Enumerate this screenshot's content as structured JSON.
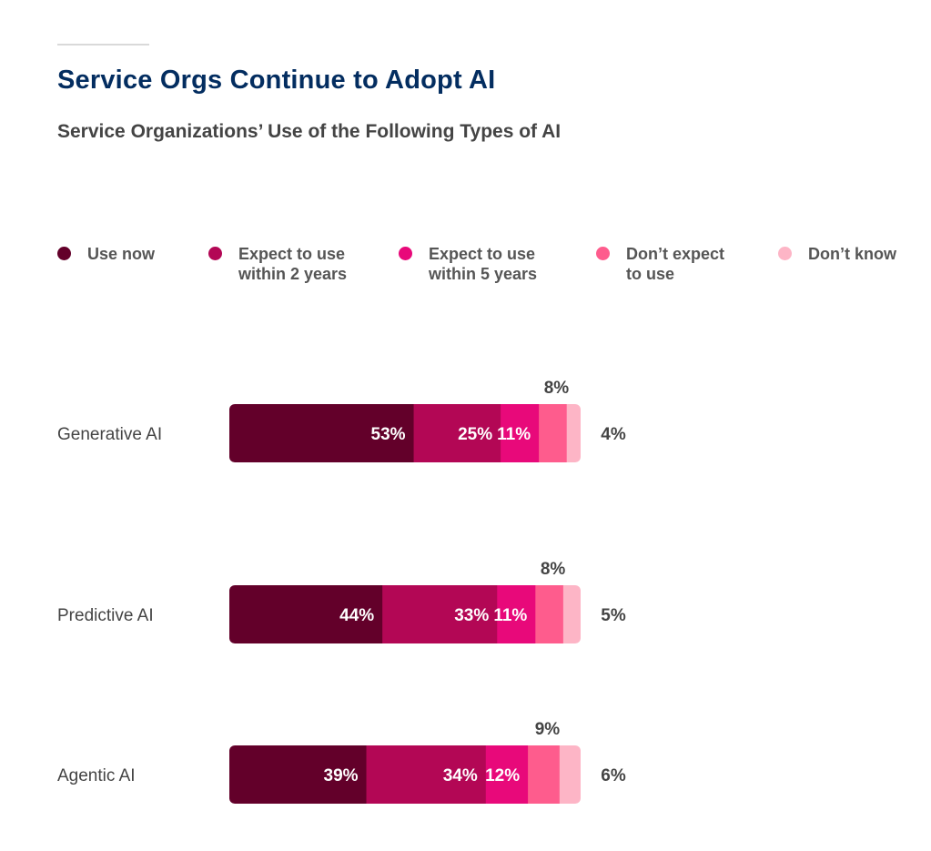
{
  "header": {
    "title": "Service Orgs Continue to Adopt AI",
    "subtitle": "Service Organizations’ Use of the Following Types of AI"
  },
  "colors": {
    "title": "#032d60",
    "use_now": "#63002a",
    "within_2_years": "#b30755",
    "within_5_years": "#e8097a",
    "dont_expect": "#fe5c8d",
    "dont_know": "#fdb5c6"
  },
  "chart_data": {
    "type": "bar",
    "orientation": "horizontal",
    "stacked": true,
    "title": "Service Organizations’ Use of the Following Types of AI",
    "categories": [
      "Generative AI",
      "Predictive AI",
      "Agentic AI"
    ],
    "series": [
      {
        "name": "Use now",
        "values": [
          53,
          44,
          39
        ],
        "labels": [
          "53%",
          "44%",
          "39%"
        ]
      },
      {
        "name": "Expect to use\nwithin 2 years",
        "values": [
          25,
          33,
          34
        ],
        "labels": [
          "25%",
          "33%",
          "34%"
        ]
      },
      {
        "name": "Expect to use\nwithin 5 years",
        "values": [
          11,
          11,
          12
        ],
        "labels": [
          "11%",
          "11%",
          "12%"
        ]
      },
      {
        "name": "Don’t expect\nto use",
        "values": [
          8,
          8,
          9
        ],
        "labels": [
          "8%",
          "8%",
          "9%"
        ]
      },
      {
        "name": "Don’t know",
        "values": [
          4,
          5,
          6
        ],
        "labels": [
          "4%",
          "5%",
          "6%"
        ]
      }
    ],
    "xlim": [
      0,
      100
    ],
    "legend_position": "top",
    "xlabel": "",
    "ylabel": ""
  }
}
